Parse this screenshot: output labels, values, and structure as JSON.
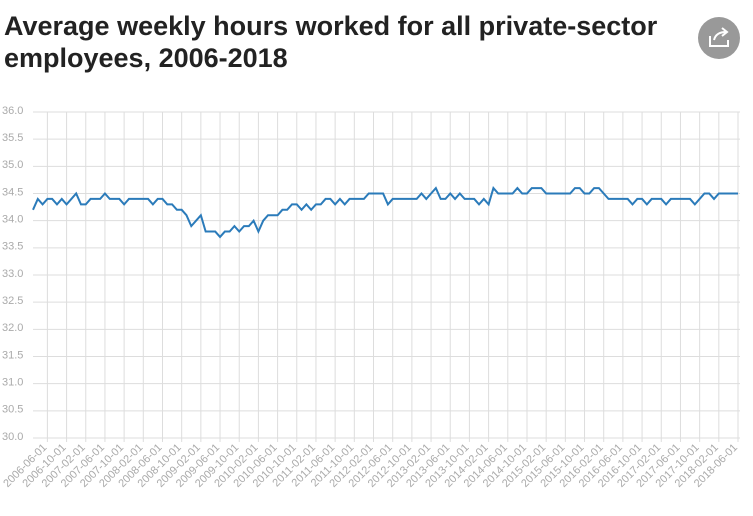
{
  "chart_data": {
    "type": "line",
    "title": "Average weekly hours worked for all private-sector employees, 2006-2018",
    "color": "#2b7bba",
    "grid": true,
    "ylim": [
      30,
      36
    ],
    "yticks": [
      {
        "value": 30,
        "label": "30.0"
      },
      {
        "value": 30.5,
        "label": "30.5"
      },
      {
        "value": 31,
        "label": "31.0"
      },
      {
        "value": 31.5,
        "label": "31.5"
      },
      {
        "value": 32,
        "label": "32.0"
      },
      {
        "value": 32.5,
        "label": "32.5"
      },
      {
        "value": 33,
        "label": "33.0"
      },
      {
        "value": 33.5,
        "label": "33.5"
      },
      {
        "value": 34,
        "label": "34.0"
      },
      {
        "value": 34.5,
        "label": "34.5"
      },
      {
        "value": 35,
        "label": "35.0"
      },
      {
        "value": 35.5,
        "label": "35.5"
      },
      {
        "value": 36,
        "label": "36.0"
      }
    ],
    "categories": [
      null,
      null,
      null,
      "2006-06-01",
      null,
      null,
      null,
      "2006-10-01",
      null,
      null,
      null,
      "2007-02-01",
      null,
      null,
      null,
      "2007-06-01",
      null,
      null,
      null,
      "2007-10-01",
      null,
      null,
      null,
      "2008-02-01",
      null,
      null,
      null,
      "2008-06-01",
      null,
      null,
      null,
      "2008-10-01",
      null,
      null,
      null,
      "2009-02-01",
      null,
      null,
      null,
      "2009-06-01",
      null,
      null,
      null,
      "2009-10-01",
      null,
      null,
      null,
      "2010-02-01",
      null,
      null,
      null,
      "2010-06-01",
      null,
      null,
      null,
      "2010-10-01",
      null,
      null,
      null,
      "2011-02-01",
      null,
      null,
      null,
      "2011-06-01",
      null,
      null,
      null,
      "2011-10-01",
      null,
      null,
      null,
      "2012-02-01",
      null,
      null,
      null,
      "2012-06-01",
      null,
      null,
      null,
      "2012-10-01",
      null,
      null,
      null,
      "2013-02-01",
      null,
      null,
      null,
      "2013-06-01",
      null,
      null,
      null,
      "2013-10-01",
      null,
      null,
      null,
      "2014-02-01",
      null,
      null,
      null,
      "2014-06-01",
      null,
      null,
      null,
      "2014-10-01",
      null,
      null,
      null,
      "2015-02-01",
      null,
      null,
      null,
      "2015-06-01",
      null,
      null,
      null,
      "2015-10-01",
      null,
      null,
      null,
      "2016-02-01",
      null,
      null,
      null,
      "2016-06-01",
      null,
      null,
      null,
      "2016-10-01",
      null,
      null,
      null,
      "2017-02-01",
      null,
      null,
      null,
      "2017-06-01",
      null,
      null,
      null,
      "2017-10-01",
      null,
      null,
      null,
      "2018-02-01",
      null,
      null,
      null,
      "2018-06-01"
    ],
    "values": [
      34.2,
      34.4,
      34.3,
      34.4,
      34.4,
      34.3,
      34.4,
      34.3,
      34.4,
      34.5,
      34.3,
      34.3,
      34.4,
      34.4,
      34.4,
      34.5,
      34.4,
      34.4,
      34.4,
      34.3,
      34.4,
      34.4,
      34.4,
      34.4,
      34.4,
      34.3,
      34.4,
      34.4,
      34.3,
      34.3,
      34.2,
      34.2,
      34.1,
      33.9,
      34.0,
      34.1,
      33.8,
      33.8,
      33.8,
      33.7,
      33.8,
      33.8,
      33.9,
      33.8,
      33.9,
      33.9,
      34.0,
      33.8,
      34.0,
      34.1,
      34.1,
      34.1,
      34.2,
      34.2,
      34.3,
      34.3,
      34.2,
      34.3,
      34.2,
      34.3,
      34.3,
      34.4,
      34.4,
      34.3,
      34.4,
      34.3,
      34.4,
      34.4,
      34.4,
      34.4,
      34.5,
      34.5,
      34.5,
      34.5,
      34.3,
      34.4,
      34.4,
      34.4,
      34.4,
      34.4,
      34.4,
      34.5,
      34.4,
      34.5,
      34.6,
      34.4,
      34.4,
      34.5,
      34.4,
      34.5,
      34.4,
      34.4,
      34.4,
      34.3,
      34.4,
      34.3,
      34.6,
      34.5,
      34.5,
      34.5,
      34.5,
      34.6,
      34.5,
      34.5,
      34.6,
      34.6,
      34.6,
      34.5,
      34.5,
      34.5,
      34.5,
      34.5,
      34.5,
      34.6,
      34.6,
      34.5,
      34.5,
      34.6,
      34.6,
      34.5,
      34.4,
      34.4,
      34.4,
      34.4,
      34.4,
      34.3,
      34.4,
      34.4,
      34.3,
      34.4,
      34.4,
      34.4,
      34.3,
      34.4,
      34.4,
      34.4,
      34.4,
      34.4,
      34.3,
      34.4,
      34.5,
      34.5,
      34.4,
      34.5,
      34.5,
      34.5,
      34.5,
      34.5
    ]
  }
}
